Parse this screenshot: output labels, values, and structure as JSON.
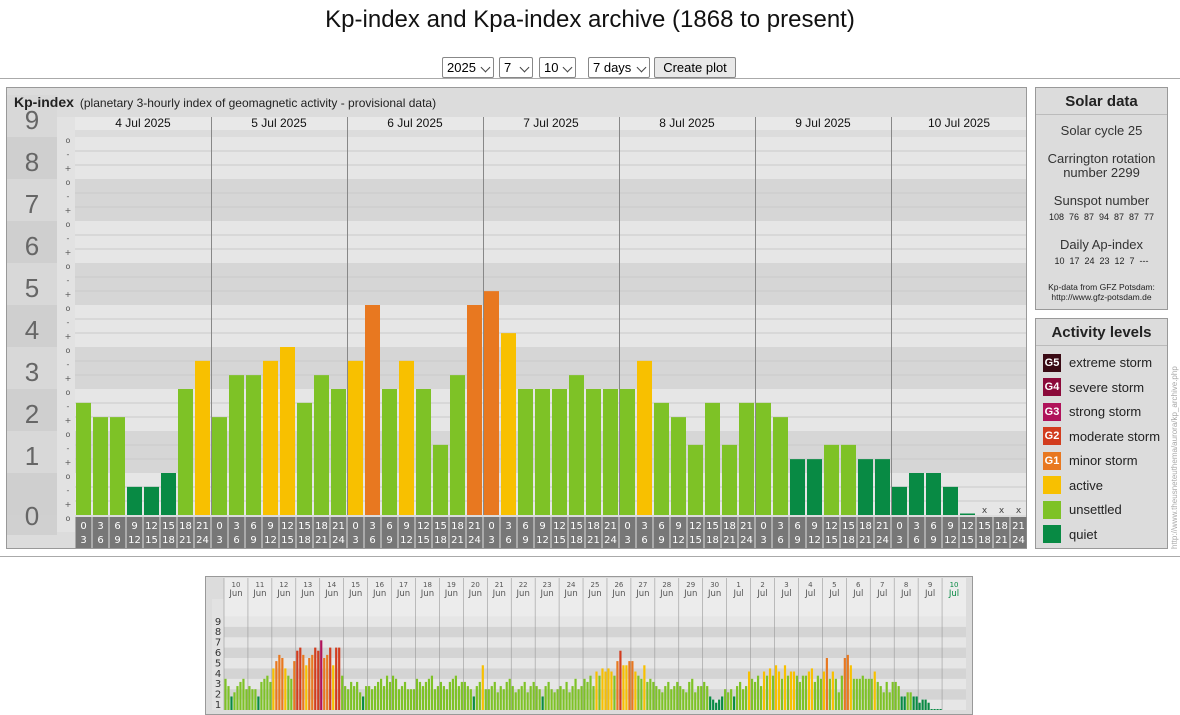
{
  "page": {
    "title": "Kp-index and Kpa-index archive (1868 to present)"
  },
  "controls": {
    "year": "2025",
    "month": "7",
    "day": "10",
    "range": "7 days",
    "create_label": "Create plot"
  },
  "kp_panel": {
    "heading": "Kp-index",
    "subheading": "(planetary 3-hourly index of geomagnetic activity - provisional data)"
  },
  "chart_data": [
    {
      "type": "bar",
      "title": "Kp-index",
      "days": [
        "4 Jul 2025",
        "5 Jul 2025",
        "6 Jul 2025",
        "7 Jul 2025",
        "8 Jul 2025",
        "9 Jul 2025",
        "10 Jul 2025"
      ],
      "interval_labels": [
        [
          "0",
          "3"
        ],
        [
          "3",
          "6"
        ],
        [
          "6",
          "9"
        ],
        [
          "9",
          "12"
        ],
        [
          "12",
          "15"
        ],
        [
          "15",
          "18"
        ],
        [
          "18",
          "21"
        ],
        [
          "21",
          "24"
        ]
      ],
      "y_ticks": [
        "0",
        "1",
        "2",
        "3",
        "4",
        "5",
        "6",
        "7",
        "8",
        "9"
      ],
      "minor_labels": [
        "o",
        "+",
        "-",
        "o",
        "+",
        "-",
        "o",
        "+",
        "-",
        "o",
        "+",
        "-",
        "o",
        "+",
        "-",
        "o",
        "+",
        "-",
        "o",
        "+",
        "-",
        "o",
        "+",
        "-",
        "o",
        "+",
        "-",
        "o"
      ],
      "ylim": [
        0,
        9
      ],
      "missing_marker": "x",
      "values": [
        2.67,
        2.33,
        2.33,
        0.67,
        0.67,
        1.0,
        3.0,
        3.67,
        2.33,
        3.33,
        3.33,
        3.67,
        4.0,
        2.67,
        3.33,
        3.0,
        3.67,
        5.0,
        3.0,
        3.67,
        3.0,
        1.67,
        3.33,
        5.0,
        5.33,
        4.33,
        3.0,
        3.0,
        3.0,
        3.33,
        3.0,
        3.0,
        3.0,
        3.67,
        2.67,
        2.33,
        1.67,
        2.67,
        1.67,
        2.67,
        2.67,
        2.33,
        1.33,
        1.33,
        1.67,
        1.67,
        1.33,
        1.33,
        0.67,
        1.0,
        1.0,
        0.67,
        0.0,
        null,
        null,
        null
      ]
    },
    {
      "type": "bar",
      "title": "30-day overview",
      "days": [
        [
          "10",
          "Jun"
        ],
        [
          "11",
          "Jun"
        ],
        [
          "12",
          "Jun"
        ],
        [
          "13",
          "Jun"
        ],
        [
          "14",
          "Jun"
        ],
        [
          "15",
          "Jun"
        ],
        [
          "16",
          "Jun"
        ],
        [
          "17",
          "Jun"
        ],
        [
          "18",
          "Jun"
        ],
        [
          "19",
          "Jun"
        ],
        [
          "20",
          "Jun"
        ],
        [
          "21",
          "Jun"
        ],
        [
          "22",
          "Jun"
        ],
        [
          "23",
          "Jun"
        ],
        [
          "24",
          "Jun"
        ],
        [
          "25",
          "Jun"
        ],
        [
          "26",
          "Jun"
        ],
        [
          "27",
          "Jun"
        ],
        [
          "28",
          "Jun"
        ],
        [
          "29",
          "Jun"
        ],
        [
          "30",
          "Jun"
        ],
        [
          "1",
          "Jul"
        ],
        [
          "2",
          "Jul"
        ],
        [
          "3",
          "Jul"
        ],
        [
          "4",
          "Jul"
        ],
        [
          "5",
          "Jul"
        ],
        [
          "6",
          "Jul"
        ],
        [
          "7",
          "Jul"
        ],
        [
          "8",
          "Jul"
        ],
        [
          "9",
          "Jul"
        ],
        [
          "10",
          "Jul"
        ]
      ],
      "y_ticks": [
        "1",
        "2",
        "3",
        "4",
        "5",
        "6",
        "7",
        "8",
        "9"
      ],
      "ylim": [
        0,
        9
      ],
      "values": [
        3,
        2.3,
        1.3,
        1.7,
        2.3,
        2.7,
        3,
        2,
        2.3,
        2,
        2,
        1.3,
        2.7,
        3,
        3.3,
        2.7,
        4,
        4.7,
        5.3,
        5,
        4,
        3.3,
        3,
        4.7,
        5.7,
        6,
        5.3,
        4.3,
        5,
        5.3,
        6,
        5.7,
        6.7,
        5,
        5.3,
        6,
        4.3,
        6,
        6,
        3.3,
        2.3,
        2,
        2.7,
        2.3,
        2.7,
        1.7,
        1.3,
        2.3,
        2.3,
        2,
        2.3,
        2.7,
        3,
        2.3,
        3.3,
        2.7,
        3.3,
        3,
        2,
        2.3,
        2.7,
        2,
        2,
        2,
        3,
        2.7,
        2.3,
        2.7,
        3,
        3.3,
        2,
        2.3,
        2.7,
        2.3,
        2,
        2.7,
        3,
        3.3,
        2.3,
        2.7,
        2.7,
        2.3,
        2,
        1.3,
        2.3,
        2.7,
        4.3,
        2,
        2,
        2.3,
        2.7,
        1.7,
        2.3,
        2,
        2.7,
        3,
        2.3,
        1.7,
        2,
        2.3,
        2.7,
        1.7,
        2.3,
        2.7,
        2.3,
        2,
        1.3,
        2.3,
        2.7,
        2,
        1.7,
        2,
        2.3,
        2,
        2.7,
        1.7,
        2.3,
        3,
        2,
        2.3,
        3,
        2.7,
        3.3,
        2.3,
        3.7,
        3.3,
        4,
        3.7,
        4,
        3.7,
        3.3,
        4.7,
        5.7,
        4.3,
        4.3,
        4.7,
        4.7,
        3.7,
        3.3,
        3,
        4.3,
        2.7,
        3,
        2.7,
        2.3,
        2,
        1.7,
        2.3,
        2.7,
        2,
        2.3,
        2.7,
        2.3,
        2,
        1.7,
        2.7,
        3,
        1.7,
        2.3,
        2.3,
        2.7,
        2.3,
        1.3,
        1,
        0.7,
        1,
        1.3,
        2,
        1.7,
        2,
        1.3,
        2.3,
        2.7,
        2,
        2.3,
        3.7,
        3,
        2.7,
        3.3,
        2.3,
        3.7,
        3.3,
        4,
        3.3,
        4.3,
        3.7,
        3,
        4.3,
        3.3,
        3.7,
        3.7,
        3.3,
        2.7,
        3.3,
        3.3,
        3.7,
        4,
        2.7,
        3.3,
        3,
        3.7,
        5,
        3,
        3.7,
        3,
        1.7,
        3.3,
        5,
        5.3,
        4.3,
        3,
        3,
        3,
        3.3,
        3,
        3,
        3,
        3.7,
        2.7,
        2.3,
        1.7,
        2.7,
        1.7,
        2.7,
        2.7,
        2.3,
        1.3,
        1.3,
        1.7,
        1.7,
        1.3,
        1.3,
        0.7,
        1,
        1,
        0.7,
        0,
        0,
        0,
        0
      ]
    }
  ],
  "solar": {
    "heading": "Solar data",
    "cycle": "Solar cycle 25",
    "carrington_line1": "Carrington rotation",
    "carrington_line2": "number 2299",
    "sunspot_label": "Sunspot number",
    "sunspot_values": [
      "108",
      "76",
      "87",
      "94",
      "87",
      "87",
      "77"
    ],
    "ap_label": "Daily Ap-index",
    "ap_values": [
      "10",
      "17",
      "24",
      "23",
      "12",
      "7",
      "---"
    ],
    "source_line1": "Kp-data from GFZ Potsdam:",
    "source_line2": "http://www.gfz-potsdam.de"
  },
  "activity": {
    "heading": "Activity levels",
    "levels": [
      {
        "code": "G5",
        "label": "extreme storm",
        "color": "#3a0a14"
      },
      {
        "code": "G4",
        "label": "severe storm",
        "color": "#8b0a3a"
      },
      {
        "code": "G3",
        "label": "strong storm",
        "color": "#b0125a"
      },
      {
        "code": "G2",
        "label": "moderate storm",
        "color": "#d23c1e"
      },
      {
        "code": "G1",
        "label": "minor storm",
        "color": "#e87820"
      },
      {
        "code": "",
        "label": "active",
        "color": "#f8c000"
      },
      {
        "code": "",
        "label": "unsettled",
        "color": "#7ec226"
      },
      {
        "code": "",
        "label": "quiet",
        "color": "#088a44"
      }
    ]
  },
  "watermark": "http://www.theusneteuthema/aurora/kp_archive.php"
}
